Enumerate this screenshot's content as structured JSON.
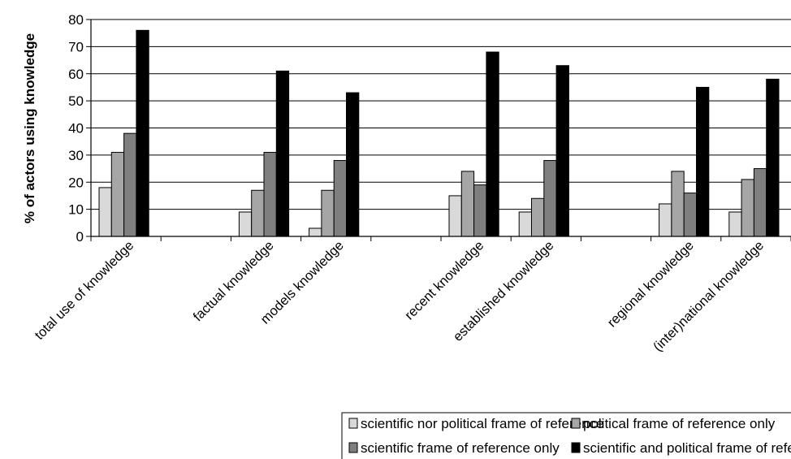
{
  "chart_data": {
    "type": "bar",
    "title": "",
    "xlabel": "",
    "ylabel": "% of actors using knowledge",
    "ylim": [
      0,
      80
    ],
    "yticks": [
      0,
      10,
      20,
      30,
      40,
      50,
      60,
      70,
      80
    ],
    "grid": "horizontal",
    "legend_position": "bottom",
    "categories": [
      "total use of knowledge",
      "",
      "factual knowledge",
      "models knowledge",
      "",
      "recent knowledge",
      "established knowledge",
      "",
      "regional knowledge",
      "(inter)national knowledge"
    ],
    "series": [
      {
        "name": "scientific nor political frame of reference",
        "color": "#d9d9d9",
        "values": [
          18,
          null,
          9,
          3,
          null,
          15,
          9,
          null,
          12,
          9
        ]
      },
      {
        "name": "political frame of reference only",
        "color": "#a6a6a6",
        "values": [
          31,
          null,
          17,
          17,
          null,
          24,
          14,
          null,
          24,
          21
        ]
      },
      {
        "name": "scientific frame of reference only",
        "color": "#7f7f7f",
        "values": [
          38,
          null,
          31,
          28,
          null,
          19,
          28,
          null,
          16,
          25
        ]
      },
      {
        "name": "scientific and political frame of reference combined",
        "color": "#000000",
        "values": [
          76,
          null,
          61,
          53,
          null,
          68,
          63,
          null,
          55,
          58
        ]
      }
    ]
  }
}
